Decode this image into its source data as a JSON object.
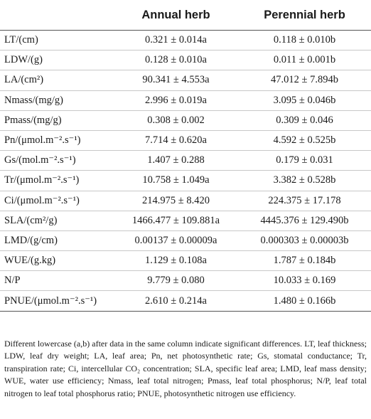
{
  "table": {
    "headers": [
      "",
      "Annual herb",
      "Perennial herb"
    ],
    "rows": [
      {
        "label": "LT/(cm)",
        "annual": "0.321 ± 0.014a",
        "perennial": "0.118 ± 0.010b"
      },
      {
        "label": "LDW/(g)",
        "annual": "0.128 ± 0.010a",
        "perennial": "0.011 ± 0.001b"
      },
      {
        "label": "LA/(cm²)",
        "annual": "90.341 ± 4.553a",
        "perennial": "47.012 ± 7.894b"
      },
      {
        "label": "Nmass/(mg/g)",
        "annual": "2.996 ± 0.019a",
        "perennial": "3.095 ± 0.046b"
      },
      {
        "label": "Pmass/(mg/g)",
        "annual": "0.308 ± 0.002",
        "perennial": "0.309 ± 0.046"
      },
      {
        "label": "Pn/(μmol.m⁻².s⁻¹)",
        "annual": "7.714 ± 0.620a",
        "perennial": "4.592 ± 0.525b"
      },
      {
        "label": "Gs/(mol.m⁻².s⁻¹)",
        "annual": "1.407 ± 0.288",
        "perennial": "0.179 ± 0.031"
      },
      {
        "label": "Tr/(μmol.m⁻².s⁻¹)",
        "annual": "10.758 ± 1.049a",
        "perennial": "3.382 ± 0.528b"
      },
      {
        "label": "Ci/(μmol.m⁻².s⁻¹)",
        "annual": "214.975 ± 8.420",
        "perennial": "224.375 ± 17.178"
      },
      {
        "label": "SLA/(cm²/g)",
        "annual": "1466.477 ± 109.881a",
        "perennial": "4445.376 ± 129.490b"
      },
      {
        "label": "LMD/(g/cm)",
        "annual": "0.00137 ± 0.00009a",
        "perennial": "0.000303 ± 0.00003b"
      },
      {
        "label": "WUE/(g.kg)",
        "annual": "1.129 ± 0.108a",
        "perennial": "1.787 ± 0.184b"
      },
      {
        "label": "N/P",
        "annual": "9.779 ± 0.080",
        "perennial": "10.033 ± 0.169"
      },
      {
        "label": "PNUE/(μmol.m⁻².s⁻¹)",
        "annual": "2.610 ± 0.214a",
        "perennial": "1.480 ± 0.166b"
      }
    ]
  },
  "footnote": "Different lowercase (a,b) after data in the same column indicate significant differences. LT, leaf thickness; LDW, leaf dry weight; LA, leaf area; Pn, net photosynthetic rate; Gs, stomatal conductance; Tr, transpiration rate; Ci, intercellular CO₂ concentration; SLA, specific leaf area; LMD, leaf mass density; WUE, water use efficiency; Nmass, leaf total nitrogen; Pmass, leaf total phosphorus; N/P, leaf total nitrogen to leaf total phosphorus ratio; PNUE, photosynthetic nitrogen use efficiency."
}
